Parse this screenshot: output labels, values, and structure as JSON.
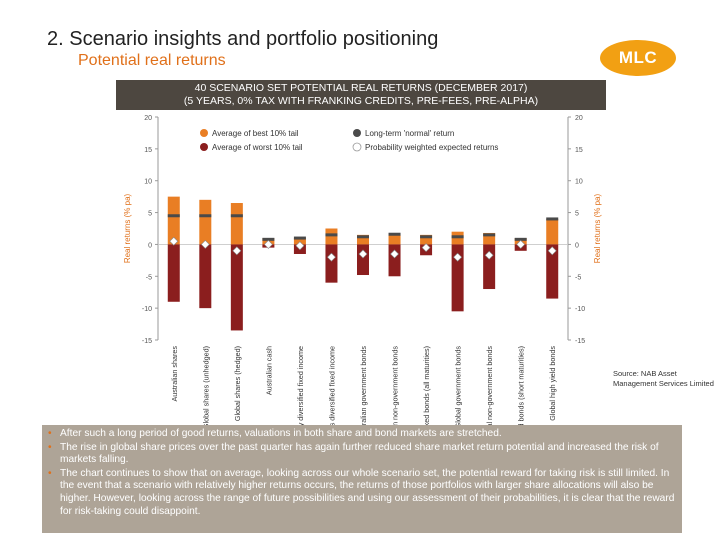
{
  "header": {
    "title": "2.  Scenario insights and portfolio positioning",
    "subtitle": "Potential real returns",
    "logo_text": "MLC"
  },
  "chart_header": {
    "line1": "40 SCENARIO SET POTENTIAL REAL RETURNS (DECEMBER 2017)",
    "line2": "(5 YEARS, 0% TAX WITH FRANKING CREDITS, PRE-FEES, PRE-ALPHA)"
  },
  "colors": {
    "best_tail": "#e97e24",
    "worst_tail": "#8b1e1e",
    "long_term": "#4a4a4a",
    "expected": "#ffffff",
    "header_bg": "#4d4740",
    "bullets_bg": "#aea497",
    "accent": "#e0701a"
  },
  "chart_data": {
    "type": "bar",
    "title": "40 SCENARIO SET POTENTIAL REAL RETURNS (DECEMBER 2017)",
    "ylabel": "Real returns (% pa)",
    "ylim": [
      -15,
      20
    ],
    "yticks": [
      -15,
      -10,
      -5,
      0,
      5,
      10,
      15,
      20
    ],
    "ytick_labels": [
      "-15",
      "-10",
      "-5",
      "0",
      "5",
      "10",
      "15",
      "20"
    ],
    "legend": {
      "best": "Average of best 10% tail",
      "worst": "Average of worst 10% tail",
      "long_term": "Long-term 'normal' return",
      "expected": "Probability weighted expected returns"
    },
    "categories": [
      "Australian shares",
      "Global shares (unhedged)",
      "Global shares (hedged)",
      "Australian cash",
      "Short maturity diversified fixed income",
      "All maturities diversified fixed income",
      "Australian government bonds",
      "Australian non-government bonds",
      "Australian inflation linked bonds (all maturities)",
      "Global government bonds",
      "Global non-government bonds",
      "Australian inflation linked bonds (short maturities)",
      "Global high yield bonds"
    ],
    "series": [
      {
        "name": "Average of best 10% tail",
        "values": [
          7.5,
          7.0,
          6.5,
          1.0,
          1.0,
          2.5,
          1.5,
          1.5,
          1.5,
          2.0,
          1.8,
          1.0,
          4.0
        ]
      },
      {
        "name": "Average of worst 10% tail",
        "values": [
          -9.0,
          -10.0,
          -13.5,
          -0.5,
          -1.5,
          -6.0,
          -4.8,
          -5.0,
          -1.7,
          -10.5,
          -7.0,
          -1.0,
          -8.5
        ]
      },
      {
        "name": "Long-term 'normal' return",
        "values": [
          4.5,
          4.5,
          4.5,
          0.8,
          1.0,
          1.5,
          1.2,
          1.6,
          1.2,
          1.2,
          1.5,
          0.8,
          4.0
        ]
      },
      {
        "name": "Probability weighted expected returns",
        "values": [
          0.5,
          0.0,
          -1.0,
          0.0,
          -0.2,
          -2.0,
          -1.5,
          -1.5,
          -0.5,
          -2.0,
          -1.7,
          0.0,
          -1.0
        ]
      }
    ]
  },
  "source": "Source: NAB Asset Management Services Limited",
  "bullets": [
    "After such a long period of good returns, valuations in both share and bond markets are stretched.",
    "The rise in global share prices over the past quarter has again further reduced share market return potential and increased the risk of markets falling.",
    "The chart continues to show that on average, looking across our whole scenario set, the potential reward for taking risk is still limited. In the event that a scenario with relatively higher returns occurs, the returns of those portfolios with larger share allocations will also be higher. However, looking across the range of future possibilities and using our assessment of their probabilities, it is clear that the reward for risk-taking could disappoint."
  ]
}
